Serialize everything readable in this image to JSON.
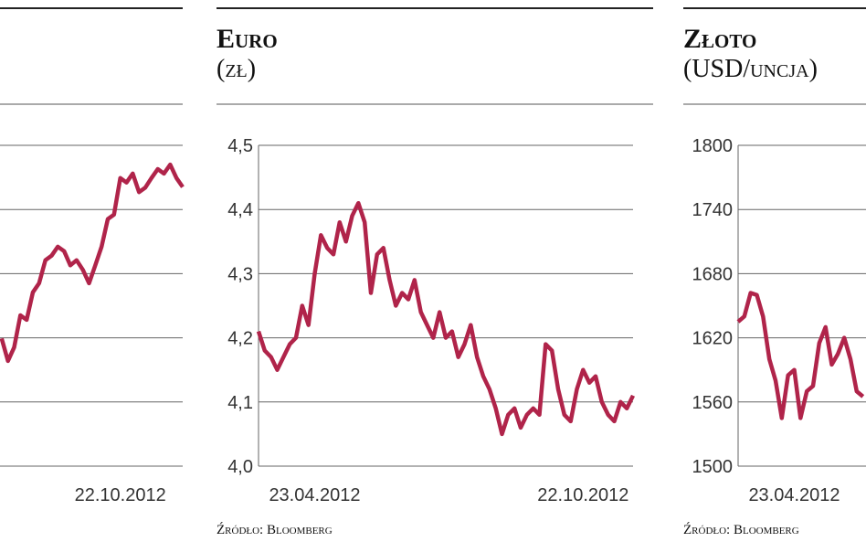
{
  "chart_data": [
    {
      "type": "line",
      "series": [
        {
          "color": "#b0244a",
          "values": [
            1.99,
            1.64,
            1.85,
            2.35,
            2.28,
            2.71,
            2.85,
            3.21,
            3.28,
            3.42,
            3.35,
            3.13,
            3.21,
            3.06,
            2.85,
            3.13,
            3.42,
            3.85,
            3.92,
            4.49,
            4.42,
            4.56,
            4.27,
            4.34,
            4.49,
            4.63,
            4.56,
            4.7,
            4.49,
            4.35
          ]
        }
      ],
      "ylim": [
        0,
        5
      ],
      "yticks": [
        0,
        1,
        2,
        3,
        4,
        5
      ],
      "grid": true,
      "tick_labels": false,
      "xticks": [
        {
          "value": 19,
          "label": "22.10.2012"
        }
      ]
    },
    {
      "type": "line",
      "title": "Euro",
      "subtitle": "(zł)",
      "source": "Źródło: Bloomberg",
      "series": [
        {
          "color": "#b0244a",
          "values": [
            4.21,
            4.18,
            4.17,
            4.15,
            4.17,
            4.19,
            4.2,
            4.25,
            4.22,
            4.3,
            4.36,
            4.34,
            4.33,
            4.38,
            4.35,
            4.39,
            4.41,
            4.38,
            4.27,
            4.33,
            4.34,
            4.29,
            4.25,
            4.27,
            4.26,
            4.29,
            4.24,
            4.22,
            4.2,
            4.24,
            4.2,
            4.21,
            4.17,
            4.19,
            4.22,
            4.17,
            4.14,
            4.12,
            4.09,
            4.05,
            4.08,
            4.09,
            4.06,
            4.08,
            4.09,
            4.08,
            4.19,
            4.18,
            4.12,
            4.08,
            4.07,
            4.12,
            4.15,
            4.13,
            4.14,
            4.1,
            4.08,
            4.07,
            4.1,
            4.09,
            4.11
          ]
        }
      ],
      "ylim": [
        4.0,
        4.5
      ],
      "grid": true,
      "tick_labels": true,
      "yticks": [
        {
          "value": 4.0,
          "label": "4,0"
        },
        {
          "value": 4.1,
          "label": "4,1"
        },
        {
          "value": 4.2,
          "label": "4,2"
        },
        {
          "value": 4.3,
          "label": "4,3"
        },
        {
          "value": 4.4,
          "label": "4,4"
        },
        {
          "value": 4.5,
          "label": "4,5"
        }
      ],
      "xticks": [
        {
          "value": 9,
          "label": "23.04.2012"
        },
        {
          "value": 52,
          "label": "22.10.2012"
        }
      ]
    },
    {
      "type": "line",
      "title": "Złoto",
      "subtitle": "(USD/uncja)",
      "source": "Źródło: Bloomberg",
      "series": [
        {
          "color": "#b0244a",
          "values": [
            1635,
            1640,
            1662,
            1660,
            1640,
            1600,
            1580,
            1545,
            1585,
            1590,
            1545,
            1570,
            1575,
            1615,
            1630,
            1595,
            1605,
            1620,
            1600,
            1570,
            1565
          ]
        }
      ],
      "ylim": [
        1500,
        1800
      ],
      "yticks": [
        1500,
        1560,
        1620,
        1680,
        1740,
        1800
      ],
      "grid": true,
      "tick_labels": true,
      "xticks": [
        {
          "value": 9,
          "label": "23.04.2012"
        }
      ]
    }
  ]
}
